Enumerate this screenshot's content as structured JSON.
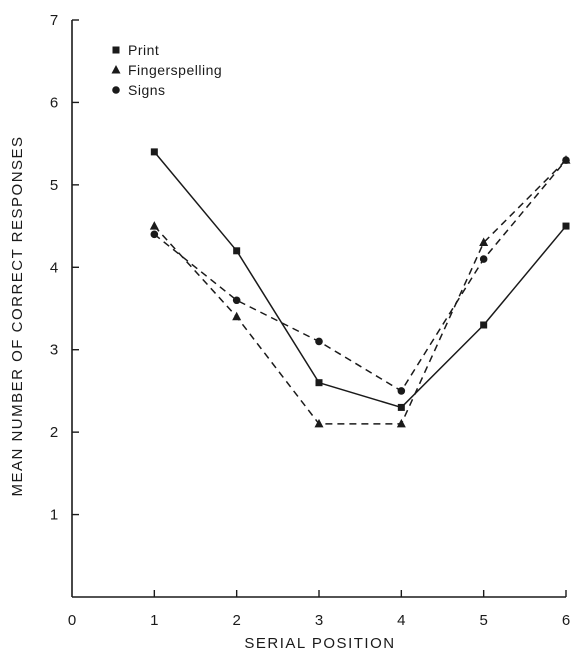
{
  "chart_data": {
    "type": "line",
    "title": "",
    "xlabel": "SERIAL POSITION",
    "ylabel": "MEAN NUMBER OF CORRECT RESPONSES",
    "xlim": [
      0,
      6
    ],
    "ylim": [
      0,
      7
    ],
    "x_ticks": [
      "0",
      "1",
      "2",
      "3",
      "4",
      "5",
      "6"
    ],
    "y_ticks": [
      "1",
      "2",
      "3",
      "4",
      "5",
      "6",
      "7"
    ],
    "x": [
      1,
      2,
      3,
      4,
      5,
      6
    ],
    "grid": false,
    "legend_position": "top-left",
    "series": [
      {
        "name": "Print",
        "marker": "square",
        "line": "solid",
        "values": [
          5.4,
          4.2,
          2.6,
          2.3,
          3.3,
          4.5
        ]
      },
      {
        "name": "Fingerspelling",
        "marker": "triangle",
        "line": "dashed",
        "values": [
          4.5,
          3.4,
          2.1,
          2.1,
          4.3,
          5.3
        ]
      },
      {
        "name": "Signs",
        "marker": "circle",
        "line": "dashed",
        "values": [
          4.4,
          3.6,
          3.1,
          2.5,
          4.1,
          5.3
        ]
      }
    ],
    "colors": {
      "ink": "#1a1a1a"
    }
  }
}
